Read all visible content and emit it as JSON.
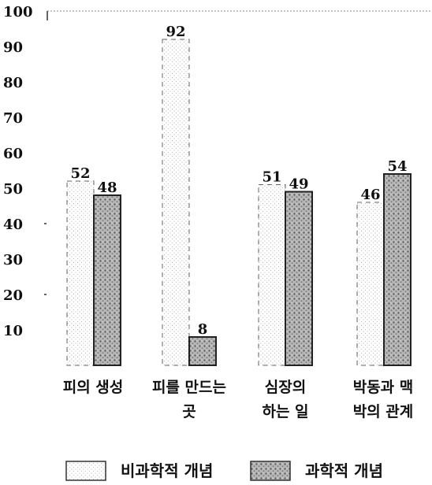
{
  "chart_data": {
    "type": "bar",
    "categories": [
      [
        "피의 생성"
      ],
      [
        "피를 만드는",
        "곳"
      ],
      [
        "심장의",
        "하는 일"
      ],
      [
        "박동과 맥",
        "박의 관계"
      ]
    ],
    "series": [
      {
        "name": "비과학적 개념",
        "values": [
          52,
          92,
          51,
          46
        ],
        "color": "#ffffff"
      },
      {
        "name": "과학적 개념",
        "values": [
          48,
          8,
          49,
          54
        ],
        "color": "#9a9a9a"
      }
    ],
    "data_labels": [
      [
        "52",
        "48"
      ],
      [
        "92",
        "8"
      ],
      [
        "51",
        "49"
      ],
      [
        "46",
        "54"
      ]
    ],
    "yticks": [
      10,
      20,
      30,
      40,
      50,
      60,
      70,
      80,
      90,
      100
    ],
    "ylim": [
      0,
      100
    ],
    "legend_position": "bottom",
    "grid": false
  }
}
